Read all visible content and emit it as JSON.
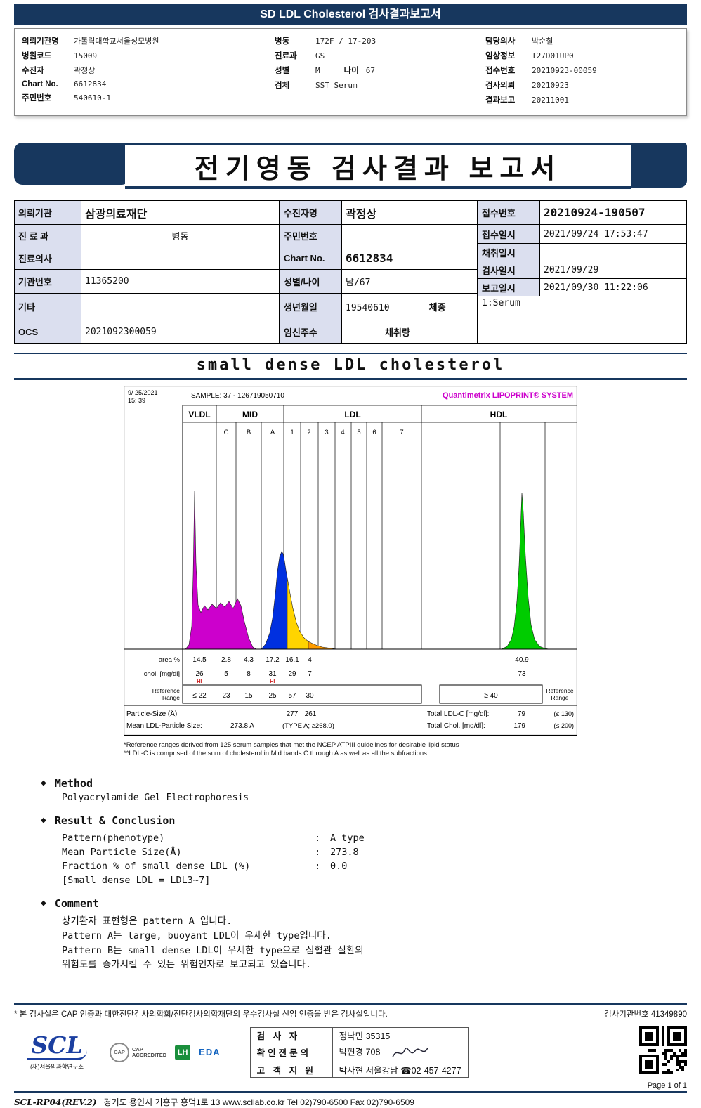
{
  "header": {
    "title": "SD LDL Cholesterol 검사결과보고서"
  },
  "patient_info": {
    "col1": [
      {
        "label": "의뢰기관명",
        "value": "가톨릭대학교서울성모병원"
      },
      {
        "label": "병원코드",
        "value": "15009"
      },
      {
        "label": "수진자",
        "value": "곽정상"
      },
      {
        "label": "Chart No.",
        "value": "6612834"
      },
      {
        "label": "주민번호",
        "value": "540610-1"
      }
    ],
    "col2": [
      {
        "label": "병동",
        "value": "172F / 17-203"
      },
      {
        "label": "진료과",
        "value": "GS"
      },
      {
        "label": "성별",
        "value": "M",
        "label2": "나이",
        "value2": "67"
      },
      {
        "label": "검체",
        "value": "SST Serum"
      }
    ],
    "col3": [
      {
        "label": "담당의사",
        "value": "박순철"
      },
      {
        "label": "임상정보",
        "value": "I27D01UP0"
      },
      {
        "label": "접수번호",
        "value": "20210923-00059"
      },
      {
        "label": "검사의뢰",
        "value": "20210923"
      },
      {
        "label": "결과보고",
        "value": "20211001"
      }
    ]
  },
  "banner": {
    "title": "전기영동 검사결과 보고서"
  },
  "report_table": {
    "left": [
      {
        "label": "의뢰기관",
        "value": "삼광의료재단"
      },
      {
        "label": "진 료 과",
        "value": "병동"
      },
      {
        "label": "진료의사",
        "value": ""
      },
      {
        "label": "기관번호",
        "value": "11365200"
      },
      {
        "label": "기타",
        "value": ""
      },
      {
        "label": "OCS",
        "value": "2021092300059"
      }
    ],
    "center": [
      {
        "label": "수진자명",
        "value": "곽정상"
      },
      {
        "label": "주민번호",
        "value": ""
      },
      {
        "label": "Chart No.",
        "value": "6612834"
      },
      {
        "label": "성별/나이",
        "value": "남/67"
      },
      {
        "label": "생년월일",
        "value": "19540610",
        "sublabel": "체중"
      },
      {
        "label": "임신주수",
        "value": "",
        "sublabel": "채취량"
      }
    ],
    "right": [
      {
        "label": "접수번호",
        "value": "20210924-190507"
      },
      {
        "label": "접수일시",
        "value": "2021/09/24 17:53:47"
      },
      {
        "label": "채취일시",
        "value": ""
      },
      {
        "label": "검사일시",
        "value": "2021/09/29"
      },
      {
        "label": "보고일시",
        "value": "2021/09/30 11:22:06"
      }
    ],
    "serum_note": "1:Serum"
  },
  "section_title": "small dense LDL cholesterol",
  "chart_data": {
    "type": "area",
    "title": "small dense LDL cholesterol",
    "printed_date": "9/ 25/2021",
    "printed_time": "15: 39",
    "sample_label": "SAMPLE:",
    "sample_id": "37 - 126719050710",
    "system_label": "Quantimetrix LIPOPRINT® SYSTEM",
    "groups": [
      "VLDL",
      "MID",
      "LDL",
      "HDL"
    ],
    "lane_labels": [
      "C",
      "B",
      "A",
      "1",
      "2",
      "3",
      "4",
      "5",
      "6",
      "7"
    ],
    "row_labels": {
      "area": "area %",
      "chol": "chol. [mg/dl]",
      "ref": "Reference Range"
    },
    "fractions": [
      {
        "name": "VLDL",
        "area_pct": 14.5,
        "chol": 26,
        "flag": "HI",
        "ref": "≤ 22"
      },
      {
        "name": "MID C",
        "area_pct": 2.8,
        "chol": 5,
        "ref": "23"
      },
      {
        "name": "MID B",
        "area_pct": 4.3,
        "chol": 8,
        "ref": "15"
      },
      {
        "name": "MID A",
        "area_pct": 17.2,
        "chol": 31,
        "flag": "HI",
        "ref": "25"
      },
      {
        "name": "LDL 1",
        "area_pct": 16.1,
        "chol": 29,
        "ref": "57"
      },
      {
        "name": "LDL 2",
        "area_pct": 4.0,
        "chol": 7,
        "ref": "30"
      },
      {
        "name": "HDL",
        "area_pct": 40.9,
        "chol": 73,
        "ref": "≥ 40"
      }
    ],
    "particle_size_label": "Particle-Size (Å)",
    "particle_sizes": [
      277,
      261
    ],
    "mean_ldl_label": "Mean LDL-Particle Size:",
    "mean_ldl_value": "273.8 A",
    "mean_ldl_type": "(TYPE A; ≥268.0)",
    "total_ldl_label": "Total LDL-C [mg/dl]:",
    "total_ldl_value": "79",
    "total_ldl_ref": "(≤ 130)",
    "total_chol_label": "Total Chol. [mg/dl]:",
    "total_chol_value": "179",
    "total_chol_ref": "(≤ 200)",
    "curves": [
      {
        "name": "VLDL",
        "color": "#cc00cc",
        "points": [
          [
            88,
            375
          ],
          [
            93,
            369
          ],
          [
            97,
            342
          ],
          [
            99,
            270
          ],
          [
            101,
            150
          ],
          [
            103,
            252
          ],
          [
            106,
            312
          ],
          [
            110,
            323
          ],
          [
            115,
            313
          ],
          [
            120,
            319
          ],
          [
            126,
            311
          ],
          [
            132,
            317
          ],
          [
            138,
            309
          ],
          [
            144,
            315
          ],
          [
            150,
            307
          ],
          [
            156,
            317
          ],
          [
            162,
            303
          ],
          [
            167,
            313
          ],
          [
            172,
            336
          ],
          [
            178,
            359
          ],
          [
            184,
            372
          ],
          [
            189,
            375
          ]
        ]
      },
      {
        "name": "MID-A",
        "color": "#0030e0",
        "points": [
          [
            196,
            375
          ],
          [
            202,
            368
          ],
          [
            208,
            352
          ],
          [
            212,
            331
          ],
          [
            216,
            296
          ],
          [
            219,
            264
          ],
          [
            222,
            244
          ],
          [
            225,
            236
          ],
          [
            227,
            239
          ],
          [
            229,
            249
          ],
          [
            231,
            262
          ],
          [
            233,
            273
          ],
          [
            233,
            375
          ]
        ]
      },
      {
        "name": "LDL-1",
        "color": "#ffd400",
        "points": [
          [
            233,
            273
          ],
          [
            237,
            296
          ],
          [
            241,
            317
          ],
          [
            246,
            337
          ],
          [
            251,
            350
          ],
          [
            257,
            359
          ],
          [
            263,
            364
          ],
          [
            263,
            375
          ],
          [
            233,
            375
          ]
        ]
      },
      {
        "name": "LDL-2",
        "color": "#ff9c00",
        "points": [
          [
            263,
            364
          ],
          [
            269,
            367
          ],
          [
            276,
            370
          ],
          [
            283,
            372
          ],
          [
            290,
            373
          ],
          [
            297,
            374
          ],
          [
            304,
            375
          ],
          [
            263,
            375
          ]
        ]
      },
      {
        "name": "HDL",
        "color": "#00cc00",
        "points": [
          [
            538,
            375
          ],
          [
            546,
            371
          ],
          [
            552,
            361
          ],
          [
            556,
            343
          ],
          [
            560,
            306
          ],
          [
            563,
            256
          ],
          [
            565,
            205
          ],
          [
            567,
            152
          ],
          [
            569,
            180
          ],
          [
            572,
            242
          ],
          [
            576,
            302
          ],
          [
            580,
            340
          ],
          [
            585,
            361
          ],
          [
            592,
            371
          ],
          [
            600,
            374
          ],
          [
            606,
            375
          ]
        ]
      }
    ]
  },
  "footnotes": [
    "*Reference ranges derived from 125 serum samples that met the NCEP ATPIII guidelines for desirable lipid status",
    "**LDL-C is comprised of the sum of cholesterol in Mid bands C through A as well as all the subfractions"
  ],
  "method": {
    "bullet": "◆",
    "colon": ":",
    "method_label": "Method",
    "method_value": "Polyacrylamide Gel Electrophoresis",
    "result_label": "Result & Conclusion",
    "rows": [
      {
        "name": "Pattern(phenotype)",
        "value": "A type"
      },
      {
        "name": "Mean Particle Size(Å)",
        "value": "273.8"
      },
      {
        "name": "Fraction % of small dense LDL (%)",
        "value": "0.0"
      }
    ],
    "note": "[Small dense LDL = LDL3~7]",
    "comment_label": "Comment",
    "comment_lines": [
      "상기환자 표현형은 pattern A 입니다.",
      "Pattern A는 large, buoyant LDL이 우세한 type입니다.",
      "Pattern B는 small dense LDL이 우세한 type으로 심혈관 질환의",
      "위험도를 증가시킬 수 있는 위험인자로 보고되고 있습니다."
    ]
  },
  "footer": {
    "accreditation": "* 본 검사실은 CAP 인증과 대한진단검사의학회/진단검사의학재단의 우수검사실 신임 인증을 받은 검사실입니다.",
    "lab_no_label": "검사기관번호",
    "lab_no": "41349890",
    "scl_logo": "SCL",
    "scl_sub": "(재)서울의과학연구소",
    "logos": {
      "cap": "CAP",
      "cap_sub": "ACCREDITED",
      "lh": "LH",
      "eda": "EDA"
    },
    "contact": [
      {
        "label": "검 사 자",
        "value": "정낙민 35315"
      },
      {
        "label": "확인전문의",
        "value": "박현경 708"
      },
      {
        "label": "고 객 지 원",
        "value": "박사현 서울강남 ☎02-457-4277"
      }
    ],
    "page_label": "Page 1 of 1",
    "doc_code": "SCL-RP04(REV.2)",
    "address": "경기도 용인시 기흥구 흥덕1로 13   www.scllab.co.kr   Tel 02)790-6500   Fax 02)790-6509"
  }
}
